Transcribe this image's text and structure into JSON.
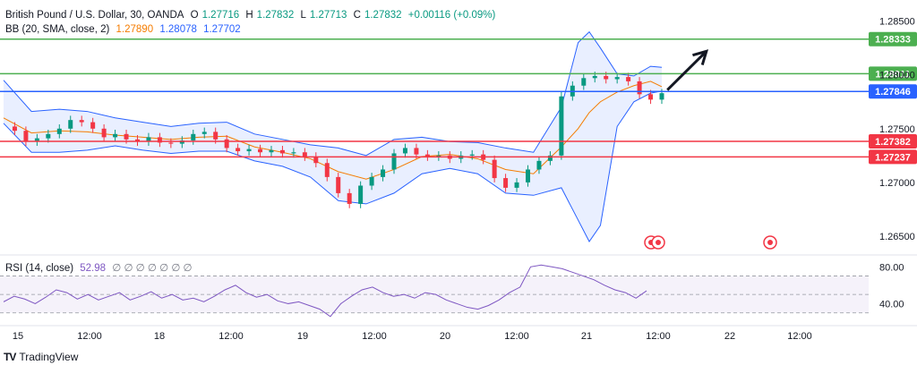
{
  "header": {
    "symbol": "British Pound / U.S. Dollar, 30, OANDA",
    "o_label": "O",
    "o": "1.27716",
    "h_label": "H",
    "h": "1.27832",
    "l_label": "L",
    "l": "1.27713",
    "c_label": "C",
    "c": "1.27832",
    "change": "+0.00116 (+0.09%)",
    "bb_label": "BB (20, SMA, close, 2)",
    "bb_basis": "1.27890",
    "bb_upper": "1.28078",
    "bb_lower": "1.27702",
    "rsi_label": "RSI (14, close)",
    "rsi_value": "52.98",
    "rsi_placeholders": "∅ ∅ ∅ ∅ ∅ ∅ ∅"
  },
  "footer": {
    "brand": "TradingView",
    "logo": "TV"
  },
  "colors": {
    "up": "#089981",
    "down": "#f23645",
    "bb_line": "#2962ff",
    "bb_fill": "#2962ff",
    "basis": "#f57c00",
    "green_line": "#4caf50",
    "blue_line": "#2962ff",
    "red_line": "#f23645",
    "rsi": "#7e57c2",
    "arrow": "#131722"
  },
  "chart_data": {
    "type": "candlestick",
    "price_axis_ticks": [
      "1.28500",
      "1.28000",
      "1.27500",
      "1.27000",
      "1.26500"
    ],
    "price_range": [
      1.2635,
      1.2863
    ],
    "x_axis_labels": [
      "15",
      "12:00",
      "18",
      "12:00",
      "19",
      "12:00",
      "20",
      "12:00",
      "21",
      "12:00",
      "22",
      "12:00"
    ],
    "horizontal_levels": [
      {
        "value": 1.28333,
        "label": "1.28333",
        "color": "#4caf50"
      },
      {
        "value": 1.28011,
        "label": "1.28011",
        "color": "#4caf50"
      },
      {
        "value": 1.27846,
        "label": "1.27846",
        "color": "#2962ff"
      },
      {
        "value": 1.27382,
        "label": "1.27382",
        "color": "#f23645"
      },
      {
        "value": 1.27237,
        "label": "1.27237",
        "color": "#f23645"
      }
    ],
    "price_path": [
      [
        0,
        1.2752
      ],
      [
        0.02,
        1.2748
      ],
      [
        0.04,
        1.2738
      ],
      [
        0.06,
        1.2741
      ],
      [
        0.08,
        1.2745
      ],
      [
        0.1,
        1.275
      ],
      [
        0.12,
        1.2758
      ],
      [
        0.14,
        1.2756
      ],
      [
        0.16,
        1.275
      ],
      [
        0.18,
        1.2742
      ],
      [
        0.2,
        1.2745
      ],
      [
        0.22,
        1.274
      ],
      [
        0.24,
        1.2738
      ],
      [
        0.26,
        1.2742
      ],
      [
        0.28,
        1.2737
      ],
      [
        0.3,
        1.2736
      ],
      [
        0.32,
        1.2739
      ],
      [
        0.34,
        1.2745
      ],
      [
        0.36,
        1.2747
      ],
      [
        0.38,
        1.274
      ],
      [
        0.4,
        1.2732
      ],
      [
        0.42,
        1.2729
      ],
      [
        0.44,
        1.2731
      ],
      [
        0.46,
        1.2728
      ],
      [
        0.48,
        1.273
      ],
      [
        0.5,
        1.2727
      ],
      [
        0.52,
        1.2728
      ],
      [
        0.54,
        1.2724
      ],
      [
        0.56,
        1.2718
      ],
      [
        0.58,
        1.2705
      ],
      [
        0.6,
        1.269
      ],
      [
        0.62,
        1.268
      ],
      [
        0.64,
        1.2697
      ],
      [
        0.66,
        1.2705
      ],
      [
        0.68,
        1.2712
      ],
      [
        0.7,
        1.2727
      ],
      [
        0.72,
        1.2732
      ],
      [
        0.74,
        1.2726
      ],
      [
        0.76,
        1.2724
      ],
      [
        0.78,
        1.2725
      ],
      [
        0.8,
        1.2722
      ],
      [
        0.82,
        1.2725
      ],
      [
        0.84,
        1.2726
      ],
      [
        0.86,
        1.2721
      ],
      [
        0.88,
        1.2704
      ],
      [
        0.9,
        1.2695
      ],
      [
        0.92,
        1.27
      ],
      [
        0.94,
        1.2712
      ],
      [
        0.96,
        1.272
      ],
      [
        0.98,
        1.2725
      ],
      [
        1.0,
        1.278
      ],
      [
        1.02,
        1.279
      ],
      [
        1.04,
        1.2797
      ],
      [
        1.06,
        1.2799
      ],
      [
        1.08,
        1.2796
      ],
      [
        1.1,
        1.2798
      ],
      [
        1.12,
        1.2794
      ],
      [
        1.14,
        1.2782
      ],
      [
        1.16,
        1.2777
      ],
      [
        1.18,
        1.2783
      ]
    ],
    "bb_upper_path": [
      [
        0,
        1.2795
      ],
      [
        0.05,
        1.2766
      ],
      [
        0.1,
        1.2768
      ],
      [
        0.15,
        1.2766
      ],
      [
        0.2,
        1.276
      ],
      [
        0.25,
        1.2756
      ],
      [
        0.3,
        1.2752
      ],
      [
        0.35,
        1.2755
      ],
      [
        0.4,
        1.2756
      ],
      [
        0.45,
        1.2745
      ],
      [
        0.5,
        1.274
      ],
      [
        0.55,
        1.2735
      ],
      [
        0.6,
        1.2732
      ],
      [
        0.65,
        1.2725
      ],
      [
        0.7,
        1.274
      ],
      [
        0.75,
        1.2742
      ],
      [
        0.8,
        1.2738
      ],
      [
        0.85,
        1.2737
      ],
      [
        0.9,
        1.2732
      ],
      [
        0.95,
        1.2728
      ],
      [
        1.0,
        1.277
      ],
      [
        1.03,
        1.283
      ],
      [
        1.05,
        1.284
      ],
      [
        1.07,
        1.2825
      ],
      [
        1.1,
        1.2801
      ],
      [
        1.13,
        1.2799
      ],
      [
        1.16,
        1.2808
      ],
      [
        1.18,
        1.2807
      ]
    ],
    "bb_lower_path": [
      [
        0,
        1.2755
      ],
      [
        0.05,
        1.2728
      ],
      [
        0.1,
        1.2728
      ],
      [
        0.15,
        1.273
      ],
      [
        0.2,
        1.2734
      ],
      [
        0.25,
        1.273
      ],
      [
        0.3,
        1.2727
      ],
      [
        0.35,
        1.2729
      ],
      [
        0.4,
        1.2729
      ],
      [
        0.45,
        1.272
      ],
      [
        0.5,
        1.2715
      ],
      [
        0.55,
        1.2705
      ],
      [
        0.6,
        1.2683
      ],
      [
        0.65,
        1.268
      ],
      [
        0.7,
        1.269
      ],
      [
        0.75,
        1.2708
      ],
      [
        0.8,
        1.2713
      ],
      [
        0.85,
        1.2708
      ],
      [
        0.9,
        1.269
      ],
      [
        0.95,
        1.2688
      ],
      [
        1.0,
        1.2695
      ],
      [
        1.03,
        1.2665
      ],
      [
        1.05,
        1.2645
      ],
      [
        1.07,
        1.266
      ],
      [
        1.1,
        1.2752
      ],
      [
        1.13,
        1.2775
      ],
      [
        1.16,
        1.2783
      ],
      [
        1.18,
        1.2785
      ]
    ],
    "bb_basis_path": [
      [
        0,
        1.276
      ],
      [
        0.05,
        1.2746
      ],
      [
        0.1,
        1.2748
      ],
      [
        0.15,
        1.2747
      ],
      [
        0.2,
        1.2744
      ],
      [
        0.25,
        1.2742
      ],
      [
        0.3,
        1.274
      ],
      [
        0.35,
        1.2742
      ],
      [
        0.4,
        1.2743
      ],
      [
        0.45,
        1.2733
      ],
      [
        0.5,
        1.2728
      ],
      [
        0.55,
        1.2722
      ],
      [
        0.6,
        1.271
      ],
      [
        0.65,
        1.2703
      ],
      [
        0.7,
        1.2712
      ],
      [
        0.75,
        1.2724
      ],
      [
        0.8,
        1.2726
      ],
      [
        0.85,
        1.2722
      ],
      [
        0.9,
        1.2712
      ],
      [
        0.95,
        1.2708
      ],
      [
        1.0,
        1.2733
      ],
      [
        1.03,
        1.275
      ],
      [
        1.05,
        1.2765
      ],
      [
        1.07,
        1.2775
      ],
      [
        1.1,
        1.2784
      ],
      [
        1.13,
        1.279
      ],
      [
        1.16,
        1.2794
      ],
      [
        1.18,
        1.2789
      ]
    ],
    "rsi": {
      "ticks": [
        "80.00",
        "40.00"
      ],
      "range": [
        20,
        90
      ],
      "overbought": 70,
      "oversold": 30,
      "values": [
        42,
        48,
        45,
        40,
        47,
        55,
        52,
        45,
        50,
        44,
        48,
        52,
        44,
        48,
        53,
        46,
        50,
        44,
        46,
        42,
        48,
        55,
        60,
        52,
        47,
        50,
        43,
        40,
        42,
        38,
        34,
        26,
        40,
        48,
        55,
        58,
        52,
        48,
        50,
        46,
        52,
        50,
        44,
        40,
        36,
        34,
        38,
        44,
        52,
        58,
        80,
        82,
        80,
        78,
        74,
        70,
        66,
        60,
        55,
        52,
        46,
        54
      ]
    },
    "projection_arrow": {
      "from": [
        1.19,
        1.2786
      ],
      "to": [
        1.26,
        1.2822
      ]
    }
  }
}
